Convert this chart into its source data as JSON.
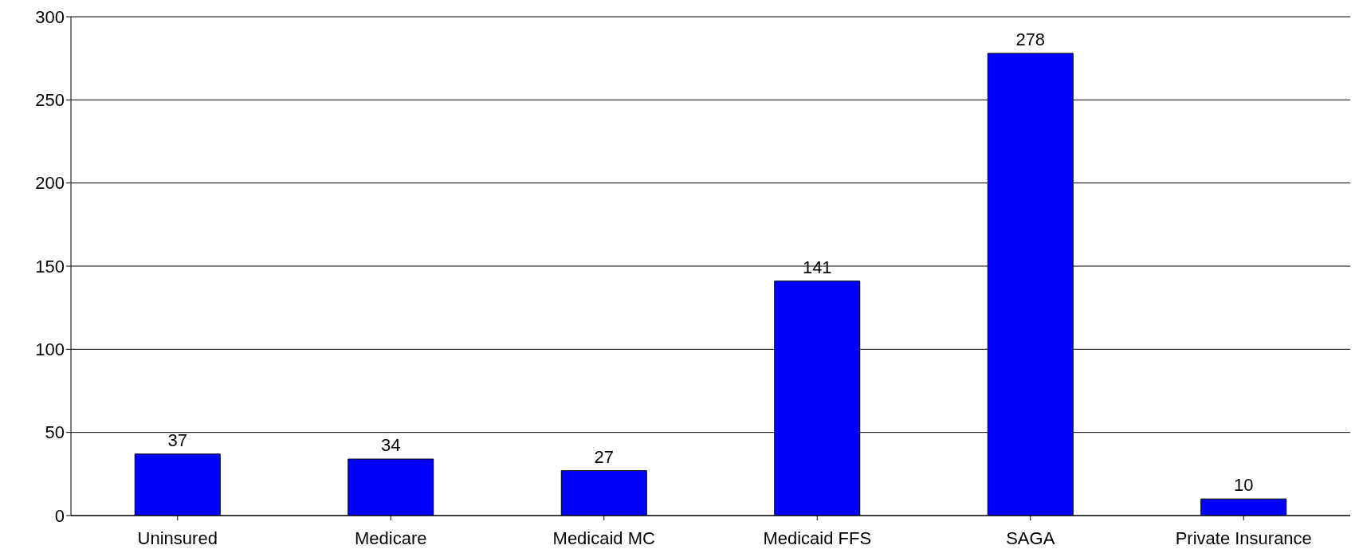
{
  "chart_data": {
    "type": "bar",
    "categories": [
      "Uninsured",
      "Medicare",
      "Medicaid MC",
      "Medicaid FFS",
      "SAGA",
      "Private Insurance"
    ],
    "values": [
      37,
      34,
      27,
      141,
      278,
      10
    ],
    "color": "#0000ff",
    "ylim": [
      0,
      300
    ],
    "yticks": [
      0,
      50,
      100,
      150,
      200,
      250,
      300
    ],
    "grid": "y",
    "data_labels": true
  }
}
